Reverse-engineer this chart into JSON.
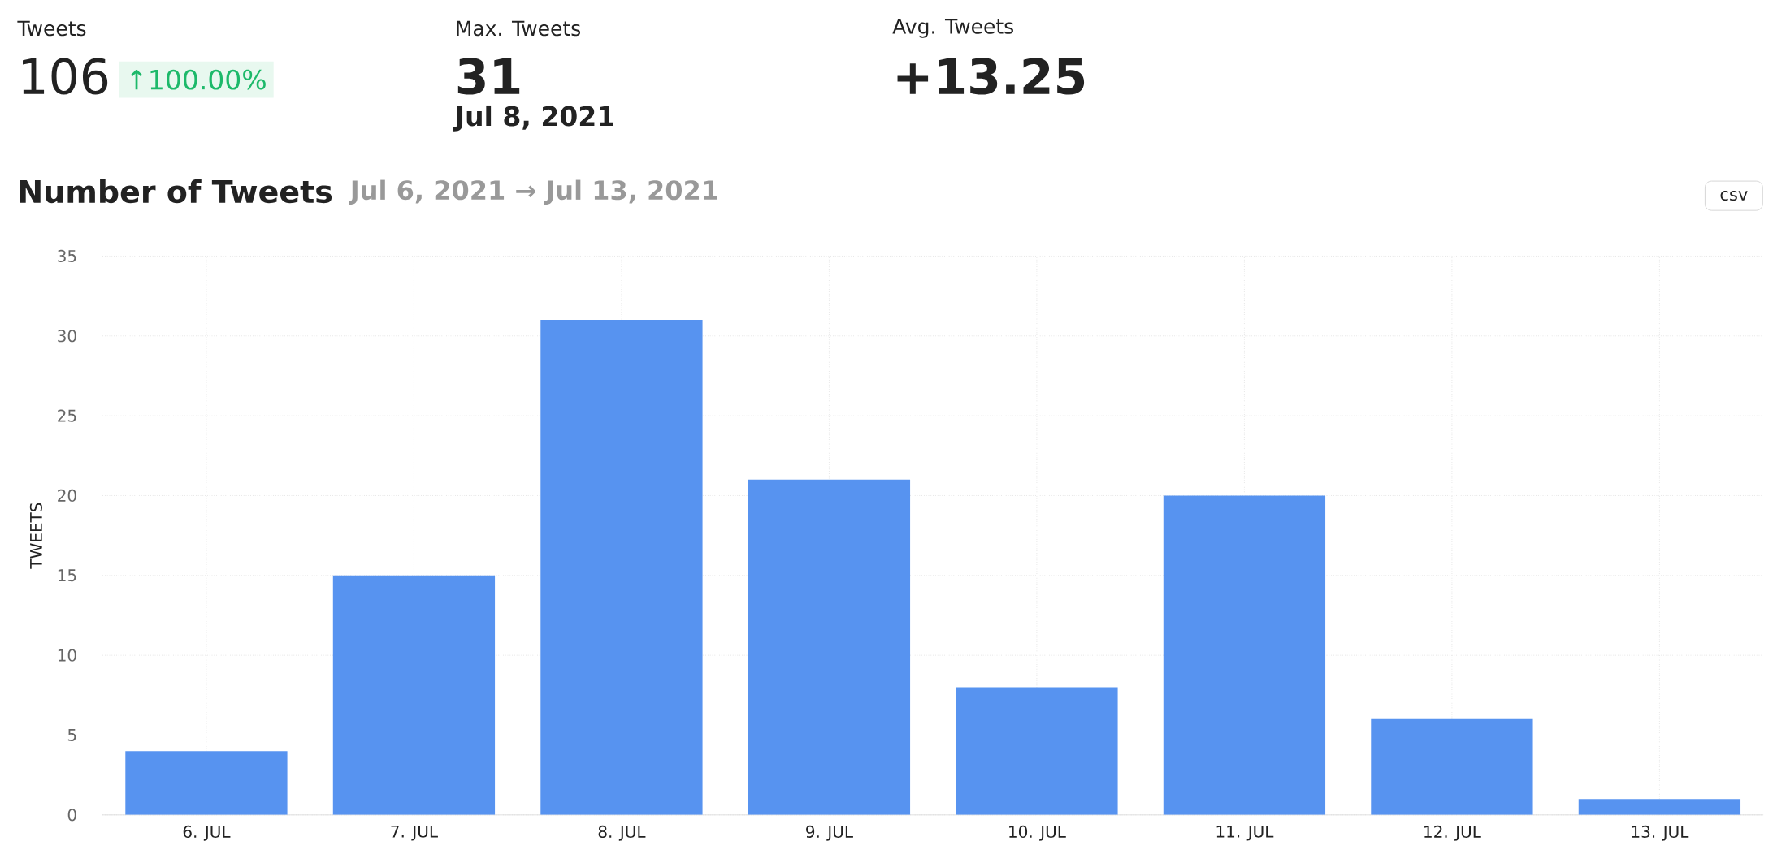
{
  "chart_data": {
    "type": "bar",
    "title": "Number of Tweets",
    "subtitle": "Jul 6, 2021 → Jul 13, 2021",
    "ylabel": "TWEETS",
    "categories": [
      "6. JUL",
      "7. JUL",
      "8. JUL",
      "9. JUL",
      "10. JUL",
      "11. JUL",
      "12. JUL",
      "13. JUL"
    ],
    "values": [
      4,
      15,
      31,
      21,
      8,
      20,
      6,
      1
    ],
    "color": "#5793f0",
    "ylim": [
      0,
      35
    ],
    "yticks": [
      0,
      5,
      10,
      15,
      20,
      25,
      30,
      35
    ],
    "grid": true,
    "annotations": [
      "Tweets",
      "106",
      "↑100.00%",
      "Max. Tweets",
      "31",
      "Jul 8, 2021",
      "Avg. Tweets",
      "+13.25",
      "csv"
    ]
  }
}
